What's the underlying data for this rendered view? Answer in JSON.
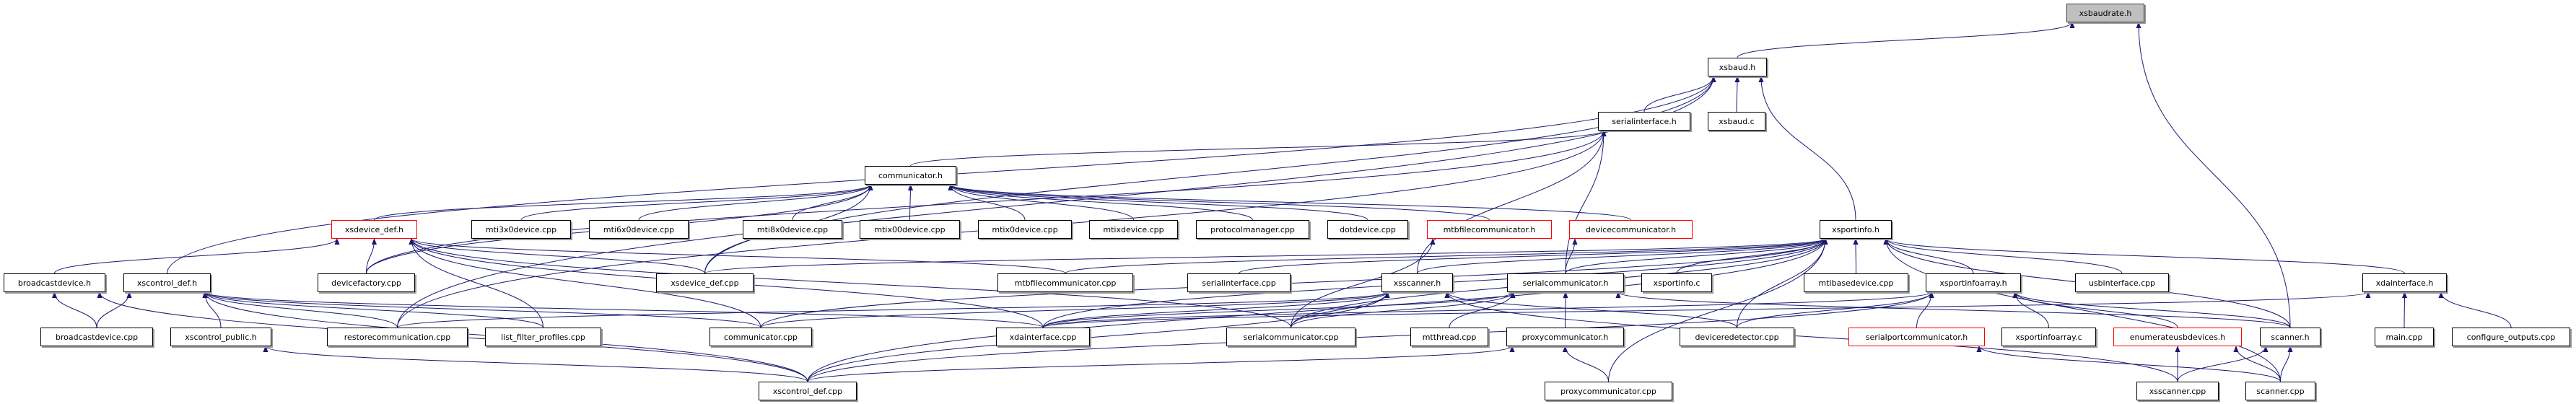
{
  "colors": {
    "edge": "#191970",
    "current_fill": "#bfbfbf",
    "missing_border": "#ff0000"
  },
  "nodes": [
    {
      "label": "xsbaudrate.h",
      "style": "current"
    },
    {
      "label": "xsbaud.h",
      "style": "normal"
    },
    {
      "label": "serialinterface.h",
      "style": "normal"
    },
    {
      "label": "xsbaud.c",
      "style": "normal"
    },
    {
      "label": "communicator.h",
      "style": "normal"
    },
    {
      "label": "xsdevice_def.h",
      "style": "red"
    },
    {
      "label": "mti3x0device.cpp",
      "style": "normal"
    },
    {
      "label": "mti6x0device.cpp",
      "style": "normal"
    },
    {
      "label": "mti8x0device.cpp",
      "style": "normal"
    },
    {
      "label": "mtix00device.cpp",
      "style": "normal"
    },
    {
      "label": "mtix0device.cpp",
      "style": "normal"
    },
    {
      "label": "mtixdevice.cpp",
      "style": "normal"
    },
    {
      "label": "protocolmanager.cpp",
      "style": "normal"
    },
    {
      "label": "dotdevice.cpp",
      "style": "normal"
    },
    {
      "label": "mtbfilecommunicator.h",
      "style": "red"
    },
    {
      "label": "devicecommunicator.h",
      "style": "red"
    },
    {
      "label": "xsportinfo.h",
      "style": "normal"
    },
    {
      "label": "broadcastdevice.h",
      "style": "normal"
    },
    {
      "label": "xscontrol_def.h",
      "style": "normal"
    },
    {
      "label": "devicefactory.cpp",
      "style": "normal"
    },
    {
      "label": "xsdevice_def.cpp",
      "style": "normal"
    },
    {
      "label": "mtbfilecommunicator.cpp",
      "style": "normal"
    },
    {
      "label": "serialinterface.cpp",
      "style": "normal"
    },
    {
      "label": "xsscanner.h",
      "style": "normal"
    },
    {
      "label": "serialcommunicator.h",
      "style": "normal"
    },
    {
      "label": "xsportinfo.c",
      "style": "normal"
    },
    {
      "label": "mtibasedevice.cpp",
      "style": "normal"
    },
    {
      "label": "xsportinfoarray.h",
      "style": "normal"
    },
    {
      "label": "usbinterface.cpp",
      "style": "normal"
    },
    {
      "label": "xdainterface.h",
      "style": "normal"
    },
    {
      "label": "broadcastdevice.cpp",
      "style": "normal"
    },
    {
      "label": "xscontrol_public.h",
      "style": "normal"
    },
    {
      "label": "restorecommunication.cpp",
      "style": "normal"
    },
    {
      "label": "list_filter_profiles.cpp",
      "style": "normal"
    },
    {
      "label": "communicator.cpp",
      "style": "normal"
    },
    {
      "label": "xdainterface.cpp",
      "style": "normal"
    },
    {
      "label": "serialcommunicator.cpp",
      "style": "normal"
    },
    {
      "label": "mtthread.cpp",
      "style": "normal"
    },
    {
      "label": "proxycommunicator.h",
      "style": "normal"
    },
    {
      "label": "deviceredetector.cpp",
      "style": "normal"
    },
    {
      "label": "serialportcommunicator.h",
      "style": "red"
    },
    {
      "label": "xsportinfoarray.c",
      "style": "normal"
    },
    {
      "label": "enumerateusbdevices.h",
      "style": "red"
    },
    {
      "label": "scanner.h",
      "style": "normal"
    },
    {
      "label": "main.cpp",
      "style": "normal"
    },
    {
      "label": "configure_outputs.cpp",
      "style": "normal"
    },
    {
      "label": "xscontrol_def.cpp",
      "style": "normal"
    },
    {
      "label": "proxycommunicator.cpp",
      "style": "normal"
    },
    {
      "label": "xsscanner.cpp",
      "style": "normal"
    },
    {
      "label": "scanner.cpp",
      "style": "normal"
    }
  ],
  "edges": [
    [
      "xsbaud.h",
      "xsbaudrate.h"
    ],
    [
      "scanner.h",
      "xsbaudrate.h"
    ],
    [
      "serialinterface.h",
      "xsbaud.h"
    ],
    [
      "xsbaud.c",
      "xsbaud.h"
    ],
    [
      "xsportinfo.h",
      "xsbaud.h"
    ],
    [
      "xscontrol_def.h",
      "xsbaud.h"
    ],
    [
      "restorecommunication.cpp",
      "xsbaud.h"
    ],
    [
      "xsdevice_def.cpp",
      "xsbaud.h"
    ],
    [
      "communicator.h",
      "serialinterface.h"
    ],
    [
      "xsscanner.h",
      "serialinterface.h"
    ],
    [
      "serialcommunicator.h",
      "serialinterface.h"
    ],
    [
      "devicefactory.cpp",
      "serialinterface.h"
    ],
    [
      "restorecommunication.cpp",
      "serialinterface.h"
    ],
    [
      "xsdevice_def.h",
      "communicator.h"
    ],
    [
      "mti3x0device.cpp",
      "communicator.h"
    ],
    [
      "mti6x0device.cpp",
      "communicator.h"
    ],
    [
      "mti8x0device.cpp",
      "communicator.h"
    ],
    [
      "mtix00device.cpp",
      "communicator.h"
    ],
    [
      "mtix0device.cpp",
      "communicator.h"
    ],
    [
      "mtixdevice.cpp",
      "communicator.h"
    ],
    [
      "protocolmanager.cpp",
      "communicator.h"
    ],
    [
      "dotdevice.cpp",
      "communicator.h"
    ],
    [
      "mtbfilecommunicator.h",
      "communicator.h"
    ],
    [
      "devicecommunicator.h",
      "communicator.h"
    ],
    [
      "xsdevice_def.cpp",
      "communicator.h"
    ],
    [
      "devicefactory.cpp",
      "communicator.h"
    ],
    [
      "broadcastdevice.h",
      "xsdevice_def.h"
    ],
    [
      "devicefactory.cpp",
      "xsdevice_def.h"
    ],
    [
      "xsdevice_def.cpp",
      "xsdevice_def.h"
    ],
    [
      "list_filter_profiles.cpp",
      "xsdevice_def.h"
    ],
    [
      "communicator.cpp",
      "xsdevice_def.h"
    ],
    [
      "xdainterface.cpp",
      "xsdevice_def.h"
    ],
    [
      "mtbfilecommunicator.cpp",
      "xsdevice_def.h"
    ],
    [
      "serialcommunicator.cpp",
      "xsdevice_def.h"
    ],
    [
      "broadcastdevice.cpp",
      "broadcastdevice.h"
    ],
    [
      "xscontrol_def.cpp",
      "broadcastdevice.h"
    ],
    [
      "broadcastdevice.cpp",
      "xscontrol_def.h"
    ],
    [
      "xscontrol_public.h",
      "xscontrol_def.h"
    ],
    [
      "restorecommunication.cpp",
      "xscontrol_def.h"
    ],
    [
      "list_filter_profiles.cpp",
      "xscontrol_def.h"
    ],
    [
      "communicator.cpp",
      "xscontrol_def.h"
    ],
    [
      "xscontrol_def.cpp",
      "xscontrol_def.h"
    ],
    [
      "xdainterface.cpp",
      "xscontrol_def.h"
    ],
    [
      "xscontrol_def.cpp",
      "xscontrol_public.h"
    ],
    [
      "serialcommunicator.cpp",
      "mtbfilecommunicator.h"
    ],
    [
      "serialcommunicator.h",
      "devicecommunicator.h"
    ],
    [
      "xsdevice_def.cpp",
      "xsportinfo.h"
    ],
    [
      "mtbfilecommunicator.cpp",
      "xsportinfo.h"
    ],
    [
      "serialinterface.cpp",
      "xsportinfo.h"
    ],
    [
      "xsscanner.h",
      "xsportinfo.h"
    ],
    [
      "serialcommunicator.h",
      "xsportinfo.h"
    ],
    [
      "xsportinfo.c",
      "xsportinfo.h"
    ],
    [
      "mtibasedevice.cpp",
      "xsportinfo.h"
    ],
    [
      "xsportinfoarray.h",
      "xsportinfo.h"
    ],
    [
      "usbinterface.cpp",
      "xsportinfo.h"
    ],
    [
      "xdainterface.h",
      "xsportinfo.h"
    ],
    [
      "communicator.cpp",
      "xsportinfo.h"
    ],
    [
      "xdainterface.cpp",
      "xsportinfo.h"
    ],
    [
      "serialcommunicator.cpp",
      "xsportinfo.h"
    ],
    [
      "deviceredetector.cpp",
      "xsportinfo.h"
    ],
    [
      "scanner.h",
      "xsportinfo.h"
    ],
    [
      "scanner.cpp",
      "xsportinfo.h"
    ],
    [
      "proxycommunicator.cpp",
      "xsportinfo.h"
    ],
    [
      "xscontrol_def.cpp",
      "xsportinfo.h"
    ],
    [
      "restorecommunication.cpp",
      "xsscanner.h"
    ],
    [
      "communicator.cpp",
      "xsscanner.h"
    ],
    [
      "xdainterface.cpp",
      "xsscanner.h"
    ],
    [
      "serialcommunicator.cpp",
      "xsscanner.h"
    ],
    [
      "xscontrol_def.cpp",
      "xsscanner.h"
    ],
    [
      "deviceredetector.cpp",
      "xsscanner.h"
    ],
    [
      "xsscanner.cpp",
      "xsscanner.h"
    ],
    [
      "serialcommunicator.cpp",
      "serialcommunicator.h"
    ],
    [
      "mtthread.cpp",
      "serialcommunicator.h"
    ],
    [
      "proxycommunicator.h",
      "serialcommunicator.h"
    ],
    [
      "xdainterface.cpp",
      "serialcommunicator.h"
    ],
    [
      "scanner.h",
      "serialcommunicator.h"
    ],
    [
      "proxycommunicator.cpp",
      "proxycommunicator.h"
    ],
    [
      "xscontrol_def.cpp",
      "proxycommunicator.h"
    ],
    [
      "deviceredetector.cpp",
      "xsportinfoarray.h"
    ],
    [
      "serialportcommunicator.h",
      "xsportinfoarray.h"
    ],
    [
      "xsportinfoarray.c",
      "xsportinfoarray.h"
    ],
    [
      "enumerateusbdevices.h",
      "xsportinfoarray.h"
    ],
    [
      "scanner.h",
      "xsportinfoarray.h"
    ],
    [
      "xscontrol_def.cpp",
      "xsportinfoarray.h"
    ],
    [
      "xdainterface.cpp",
      "xsportinfoarray.h"
    ],
    [
      "main.cpp",
      "xdainterface.h"
    ],
    [
      "configure_outputs.cpp",
      "xdainterface.h"
    ],
    [
      "xdainterface.cpp",
      "xdainterface.h"
    ],
    [
      "xsscanner.cpp",
      "enumerateusbdevices.h"
    ],
    [
      "scanner.cpp",
      "enumerateusbdevices.h"
    ],
    [
      "xsscanner.cpp",
      "scanner.h"
    ],
    [
      "scanner.cpp",
      "scanner.h"
    ],
    [
      "scanner.cpp",
      "serialportcommunicator.h"
    ]
  ]
}
